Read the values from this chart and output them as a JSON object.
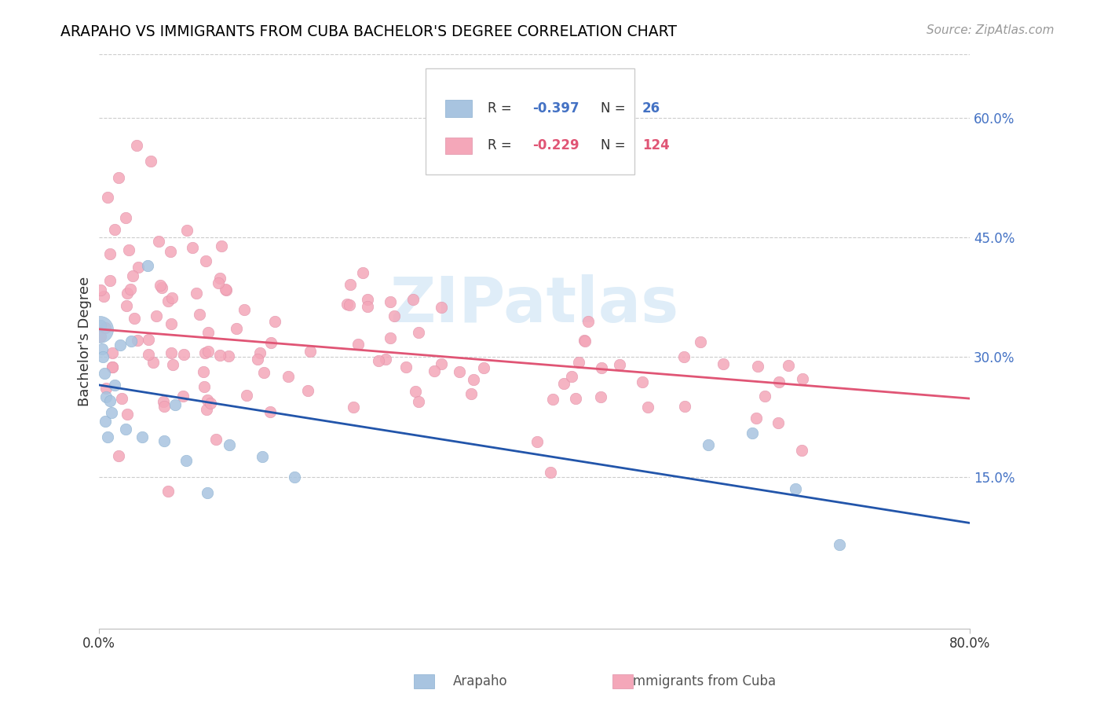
{
  "title": "ARAPAHO VS IMMIGRANTS FROM CUBA BACHELOR'S DEGREE CORRELATION CHART",
  "source": "Source: ZipAtlas.com",
  "ylabel": "Bachelor's Degree",
  "yticks": [
    "15.0%",
    "30.0%",
    "45.0%",
    "60.0%"
  ],
  "ytick_values": [
    0.15,
    0.3,
    0.45,
    0.6
  ],
  "xlim": [
    0.0,
    0.8
  ],
  "ylim": [
    -0.04,
    0.68
  ],
  "watermark": "ZIPatlas",
  "arapaho_R": -0.397,
  "arapaho_N": 26,
  "cuba_R": -0.229,
  "cuba_N": 124,
  "arapaho_color": "#a8c4e0",
  "cuba_color": "#f4a7b9",
  "arapaho_line_color": "#2255aa",
  "cuba_line_color": "#e05575",
  "arapaho_line_x0": 0.0,
  "arapaho_line_y0": 0.265,
  "arapaho_line_x1": 0.8,
  "arapaho_line_y1": 0.092,
  "cuba_line_x0": 0.0,
  "cuba_line_y0": 0.335,
  "cuba_line_x1": 0.8,
  "cuba_line_y1": 0.248,
  "legend_R1": "R = -0.397",
  "legend_N1": "N =  26",
  "legend_R2": "R = -0.229",
  "legend_N2": "N = 124",
  "legend_color1": "#4472c4",
  "legend_color2": "#e05575"
}
